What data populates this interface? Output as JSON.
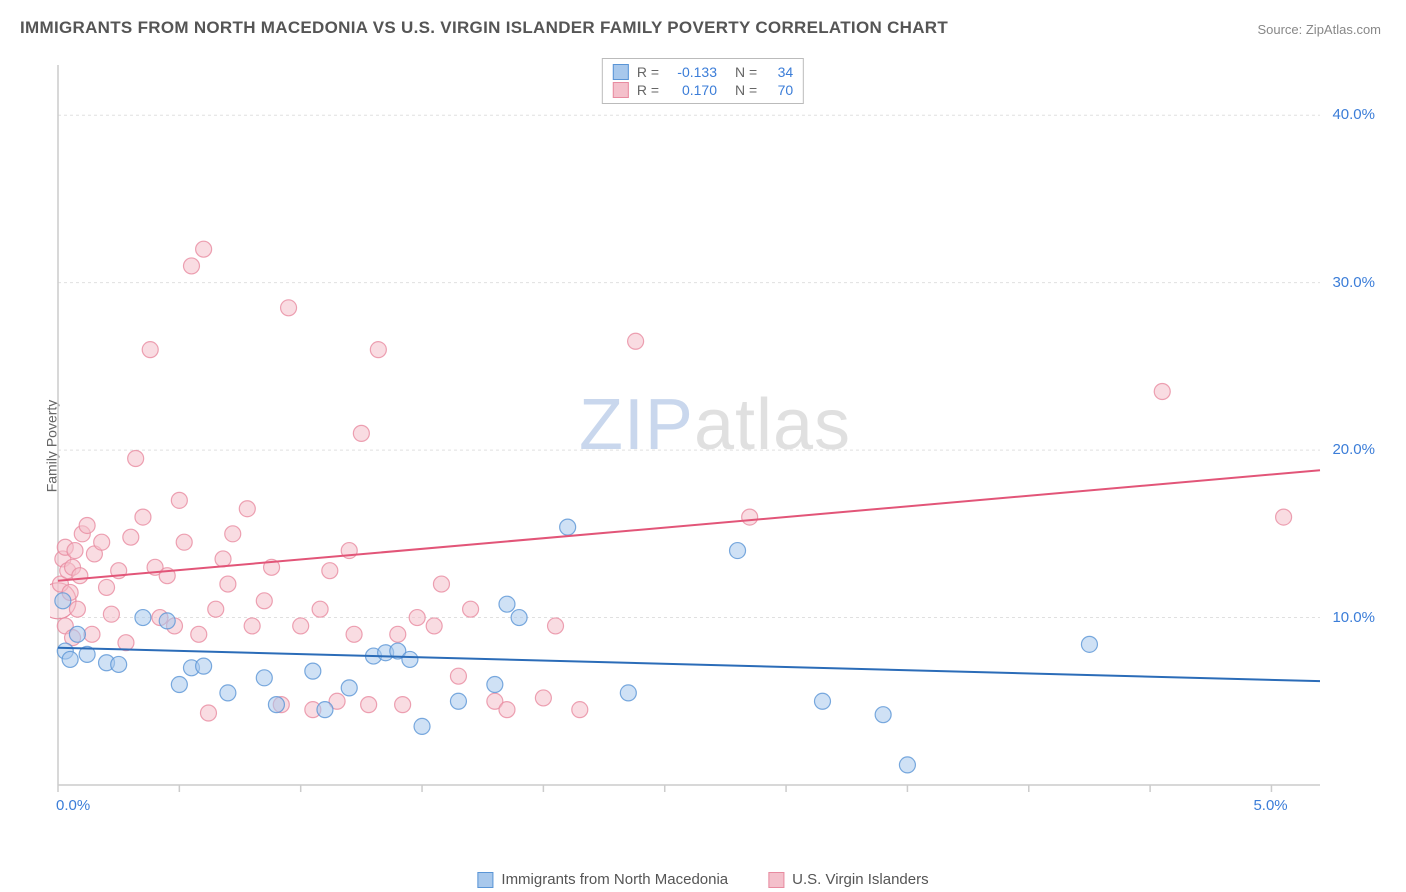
{
  "title": "IMMIGRANTS FROM NORTH MACEDONIA VS U.S. VIRGIN ISLANDER FAMILY POVERTY CORRELATION CHART",
  "source": "Source: ZipAtlas.com",
  "y_axis_label": "Family Poverty",
  "watermark_zip": "ZIP",
  "watermark_atlas": "atlas",
  "chart": {
    "type": "scatter",
    "background_color": "#ffffff",
    "grid_color": "#e0e0e0",
    "axis_color": "#cccccc",
    "tick_label_color": "#3b7dd8",
    "xlim": [
      0,
      5.2
    ],
    "ylim": [
      0,
      43
    ],
    "x_ticks": [
      0,
      0.5,
      1.0,
      1.5,
      2.0,
      2.5,
      3.0,
      3.5,
      4.0,
      4.5,
      5.0
    ],
    "x_tick_labels": {
      "0": "0.0%",
      "5.0": "5.0%"
    },
    "y_grid": [
      10,
      20,
      30,
      40
    ],
    "y_tick_labels": {
      "10": "10.0%",
      "20": "20.0%",
      "30": "30.0%",
      "40": "40.0%"
    },
    "marker_radius": 8,
    "marker_opacity": 0.55,
    "marker_stroke_width": 1.2,
    "line_width": 2,
    "series": [
      {
        "name": "Immigrants from North Macedonia",
        "color_fill": "#a8c8ec",
        "color_stroke": "#5a95d6",
        "line_color": "#2b6cb8",
        "R": "-0.133",
        "N": "34",
        "trend": {
          "x1": 0,
          "y1": 8.2,
          "x2": 5.2,
          "y2": 6.2
        },
        "points": [
          [
            0.02,
            11.0
          ],
          [
            0.03,
            8.0
          ],
          [
            0.05,
            7.5
          ],
          [
            0.08,
            9.0
          ],
          [
            0.12,
            7.8
          ],
          [
            0.2,
            7.3
          ],
          [
            0.25,
            7.2
          ],
          [
            0.35,
            10.0
          ],
          [
            0.45,
            9.8
          ],
          [
            0.5,
            6.0
          ],
          [
            0.55,
            7.0
          ],
          [
            0.6,
            7.1
          ],
          [
            0.7,
            5.5
          ],
          [
            0.85,
            6.4
          ],
          [
            0.9,
            4.8
          ],
          [
            1.05,
            6.8
          ],
          [
            1.1,
            4.5
          ],
          [
            1.2,
            5.8
          ],
          [
            1.3,
            7.7
          ],
          [
            1.35,
            7.9
          ],
          [
            1.4,
            8.0
          ],
          [
            1.45,
            7.5
          ],
          [
            1.5,
            3.5
          ],
          [
            1.65,
            5.0
          ],
          [
            1.8,
            6.0
          ],
          [
            1.85,
            10.8
          ],
          [
            1.9,
            10.0
          ],
          [
            2.1,
            15.4
          ],
          [
            2.35,
            5.5
          ],
          [
            2.8,
            14.0
          ],
          [
            3.15,
            5.0
          ],
          [
            3.4,
            4.2
          ],
          [
            3.5,
            1.2
          ],
          [
            4.25,
            8.4
          ]
        ]
      },
      {
        "name": "U.S. Virgin Islanders",
        "color_fill": "#f4c0cb",
        "color_stroke": "#e88ba0",
        "line_color": "#e25578",
        "R": "0.170",
        "N": "70",
        "trend": {
          "x1": 0,
          "y1": 12.2,
          "x2": 5.2,
          "y2": 18.8
        },
        "points": [
          [
            0.01,
            12.0
          ],
          [
            0.02,
            13.5
          ],
          [
            0.03,
            14.2
          ],
          [
            0.04,
            12.8
          ],
          [
            0.05,
            11.5
          ],
          [
            0.06,
            13.0
          ],
          [
            0.07,
            14.0
          ],
          [
            0.08,
            10.5
          ],
          [
            0.09,
            12.5
          ],
          [
            0.1,
            15.0
          ],
          [
            0.12,
            15.5
          ],
          [
            0.14,
            9.0
          ],
          [
            0.15,
            13.8
          ],
          [
            0.18,
            14.5
          ],
          [
            0.2,
            11.8
          ],
          [
            0.22,
            10.2
          ],
          [
            0.25,
            12.8
          ],
          [
            0.28,
            8.5
          ],
          [
            0.3,
            14.8
          ],
          [
            0.32,
            19.5
          ],
          [
            0.35,
            16.0
          ],
          [
            0.38,
            26.0
          ],
          [
            0.4,
            13.0
          ],
          [
            0.42,
            10.0
          ],
          [
            0.45,
            12.5
          ],
          [
            0.48,
            9.5
          ],
          [
            0.5,
            17.0
          ],
          [
            0.52,
            14.5
          ],
          [
            0.55,
            31.0
          ],
          [
            0.58,
            9.0
          ],
          [
            0.6,
            32.0
          ],
          [
            0.62,
            4.3
          ],
          [
            0.65,
            10.5
          ],
          [
            0.68,
            13.5
          ],
          [
            0.7,
            12.0
          ],
          [
            0.72,
            15.0
          ],
          [
            0.78,
            16.5
          ],
          [
            0.8,
            9.5
          ],
          [
            0.85,
            11.0
          ],
          [
            0.88,
            13.0
          ],
          [
            0.92,
            4.8
          ],
          [
            0.95,
            28.5
          ],
          [
            1.0,
            9.5
          ],
          [
            1.05,
            4.5
          ],
          [
            1.08,
            10.5
          ],
          [
            1.12,
            12.8
          ],
          [
            1.15,
            5.0
          ],
          [
            1.2,
            14.0
          ],
          [
            1.22,
            9.0
          ],
          [
            1.25,
            21.0
          ],
          [
            1.28,
            4.8
          ],
          [
            1.32,
            26.0
          ],
          [
            1.4,
            9.0
          ],
          [
            1.42,
            4.8
          ],
          [
            1.48,
            10.0
          ],
          [
            1.55,
            9.5
          ],
          [
            1.58,
            12.0
          ],
          [
            1.65,
            6.5
          ],
          [
            1.7,
            10.5
          ],
          [
            1.8,
            5.0
          ],
          [
            1.85,
            4.5
          ],
          [
            2.0,
            5.2
          ],
          [
            2.05,
            9.5
          ],
          [
            2.15,
            4.5
          ],
          [
            2.38,
            26.5
          ],
          [
            2.85,
            16.0
          ],
          [
            4.55,
            23.5
          ],
          [
            5.05,
            16.0
          ],
          [
            0.03,
            9.5
          ],
          [
            0.06,
            8.8
          ]
        ],
        "large_points": [
          [
            0.0,
            11.0
          ]
        ]
      }
    ]
  },
  "stats_box": {
    "rows": [
      {
        "swatch_fill": "#a8c8ec",
        "swatch_stroke": "#5a95d6",
        "r_lbl": "R =",
        "r_val": "-0.133",
        "n_lbl": "N =",
        "n_val": "34"
      },
      {
        "swatch_fill": "#f4c0cb",
        "swatch_stroke": "#e88ba0",
        "r_lbl": "R =",
        "r_val": "0.170",
        "n_lbl": "N =",
        "n_val": "70"
      }
    ]
  },
  "bottom_legend": [
    {
      "swatch_fill": "#a8c8ec",
      "swatch_stroke": "#5a95d6",
      "label": "Immigrants from North Macedonia"
    },
    {
      "swatch_fill": "#f4c0cb",
      "swatch_stroke": "#e88ba0",
      "label": "U.S. Virgin Islanders"
    }
  ]
}
